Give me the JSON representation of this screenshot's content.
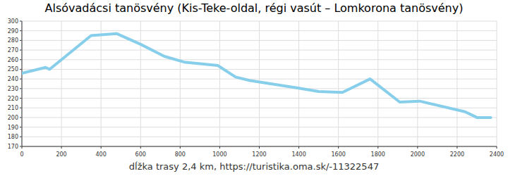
{
  "chart_data": {
    "type": "line",
    "title": "Alsóvadácsi tanösvény (Kis-Teke-oldal, régi vasút – Lomkorona tanösvény)",
    "x_label": "dĺžka trasy 2,4 km, https://turistika.oma.sk/-11322547",
    "x": [
      0,
      120,
      140,
      350,
      480,
      600,
      720,
      820,
      990,
      1080,
      1150,
      1400,
      1500,
      1620,
      1760,
      1910,
      2010,
      2240,
      2300,
      2370
    ],
    "values": [
      246,
      252,
      250,
      285,
      287,
      276,
      263.5,
      257.5,
      254,
      242,
      238.5,
      230.5,
      227,
      226,
      240,
      216,
      217,
      206,
      200,
      200
    ],
    "color": "#87ceeb",
    "xlim": [
      0,
      2400
    ],
    "ylim": [
      170,
      300
    ],
    "xticks": [
      0,
      200,
      400,
      600,
      800,
      1000,
      1200,
      1400,
      1600,
      1800,
      2000,
      2200,
      2400
    ],
    "yticks": [
      170,
      180,
      190,
      200,
      210,
      220,
      230,
      240,
      250,
      260,
      270,
      280,
      290,
      300
    ],
    "grid": true
  }
}
